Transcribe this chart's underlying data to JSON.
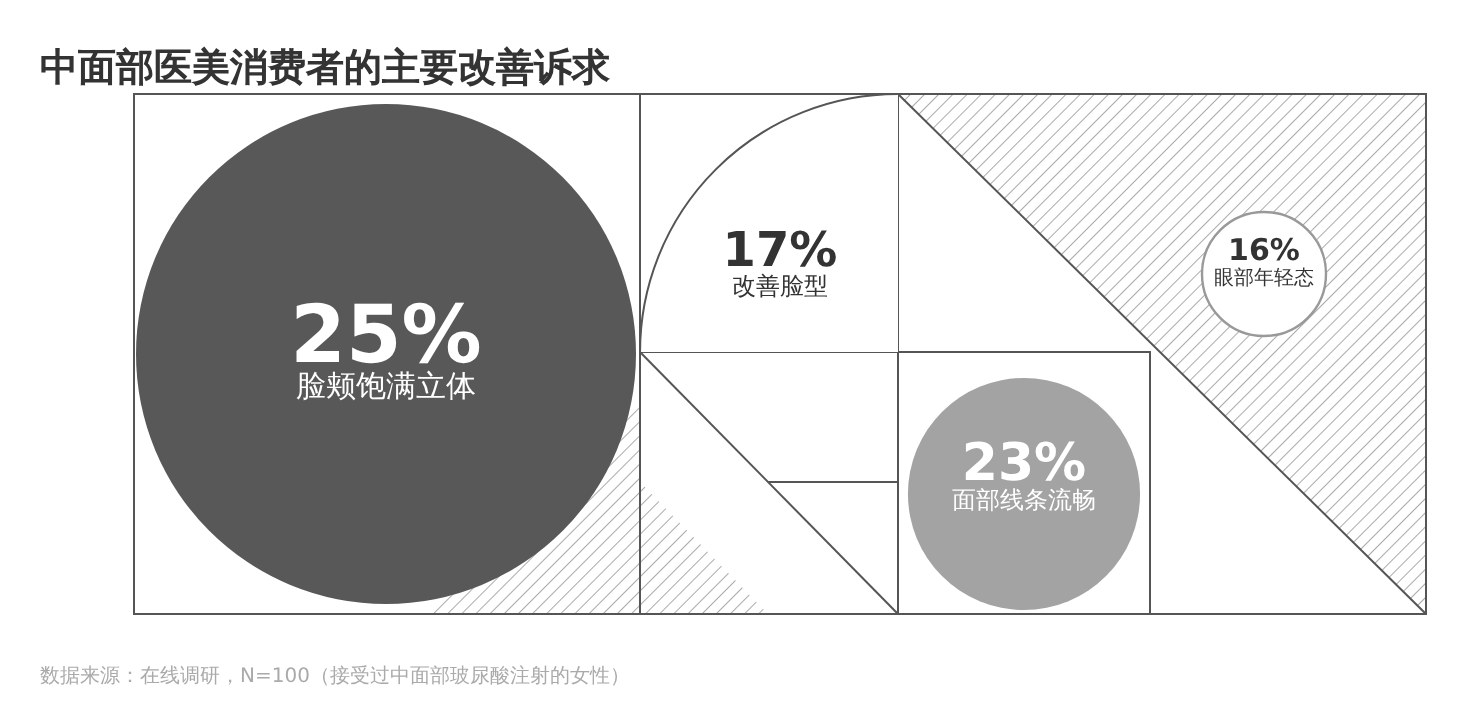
{
  "chart_data": {
    "type": "other",
    "title": "中面部医美消费者的主要改善诉求",
    "categories": [
      "脸颊饱满立体",
      "改善脸型",
      "眼部年轻态",
      "面部线条流畅"
    ],
    "colors": [
      "#585858",
      "#ffffff",
      "#ffffff",
      "#a3a3a3"
    ],
    "values": [
      25,
      17,
      16,
      23
    ],
    "value_labels": [
      "25%",
      "17%",
      "16%",
      "23%"
    ],
    "annotations": [
      "数据来源：在线调研，N=100（接受过中面部玻尿酸注射的女性）"
    ]
  }
}
